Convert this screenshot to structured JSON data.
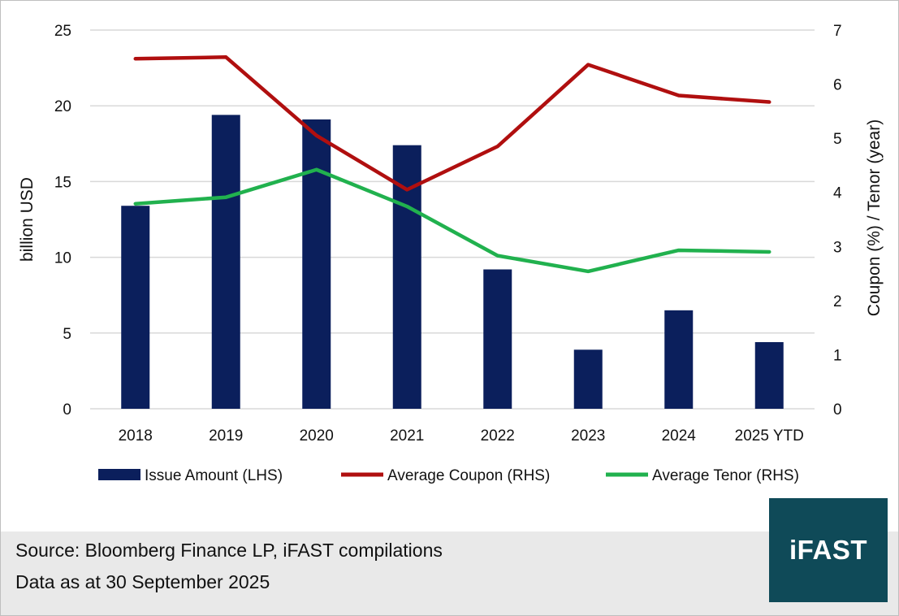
{
  "chart_data": {
    "type": "bar",
    "categories": [
      "2018",
      "2019",
      "2020",
      "2021",
      "2022",
      "2023",
      "2024",
      "2025 YTD"
    ],
    "series": [
      {
        "name": "Issue Amount (LHS)",
        "type": "bar",
        "axis": "left",
        "color": "#0b1f5c",
        "values": [
          13.4,
          19.4,
          19.1,
          17.4,
          9.2,
          3.9,
          6.5,
          4.4
        ]
      },
      {
        "name": "Average Coupon (RHS)",
        "type": "line",
        "axis": "right",
        "color": "#b00f0f",
        "values": [
          6.47,
          6.5,
          5.05,
          4.05,
          4.85,
          6.36,
          5.79,
          5.67
        ]
      },
      {
        "name": "Average Tenor (RHS)",
        "type": "line",
        "axis": "right",
        "color": "#21b14e",
        "values": [
          3.79,
          3.91,
          4.42,
          3.74,
          2.83,
          2.54,
          2.93,
          2.9
        ]
      }
    ],
    "ylabel": "billion USD",
    "y2label": "Coupon (%) / Tenor (year)",
    "ylim": [
      0,
      25
    ],
    "yticks": [
      "0",
      "5",
      "10",
      "15",
      "20",
      "25"
    ],
    "y2lim": [
      0,
      7
    ],
    "y2ticks": [
      "0",
      "1",
      "2",
      "3",
      "4",
      "5",
      "6",
      "7"
    ],
    "grid": true,
    "legend": "bottom"
  },
  "source_text": "Source: Bloomberg Finance LP, iFAST compilations",
  "date_text": "Data as at 30 September 2025",
  "logo_text": "iFAST"
}
